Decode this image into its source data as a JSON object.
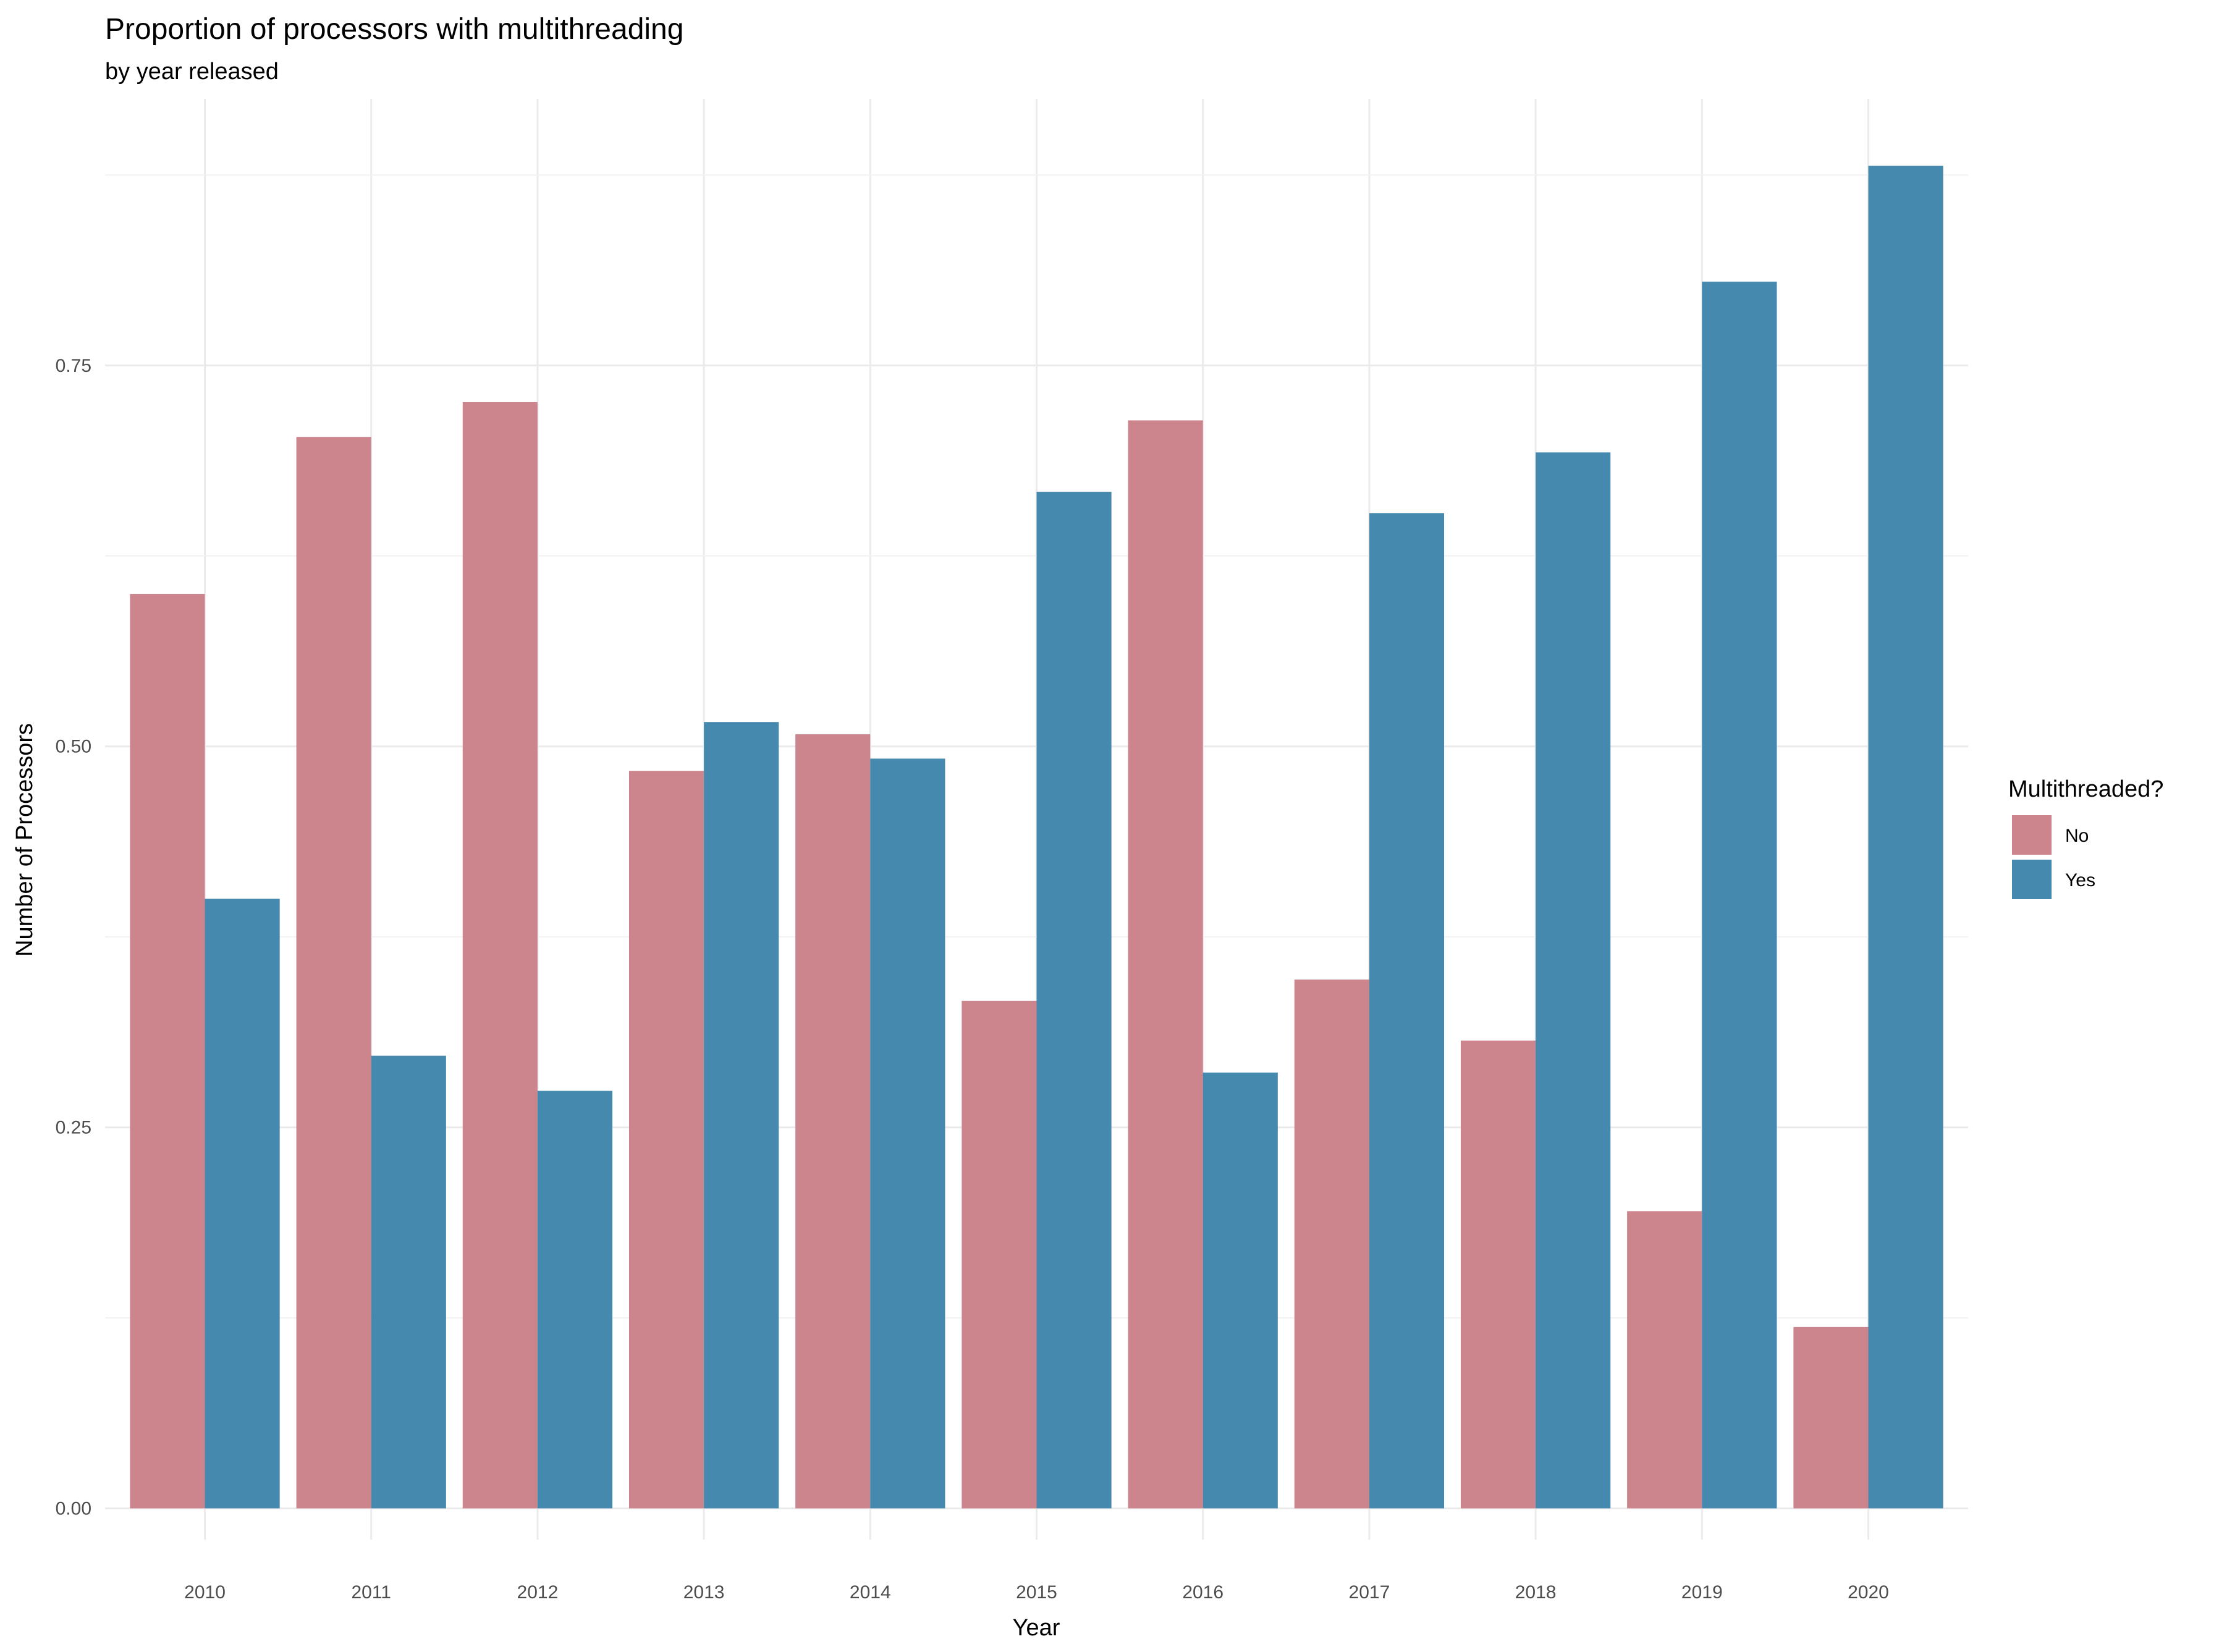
{
  "chart_data": {
    "type": "bar",
    "title": "Proportion of processors with multithreading",
    "subtitle": "by year released",
    "xlabel": "Year",
    "ylabel": "Number of Processors",
    "categories": [
      "2010",
      "2011",
      "2012",
      "2013",
      "2014",
      "2015",
      "2016",
      "2017",
      "2018",
      "2019",
      "2020"
    ],
    "series": [
      {
        "name": "No",
        "color": "#CC858C",
        "values": [
          0.6,
          0.703,
          0.726,
          0.484,
          0.508,
          0.333,
          0.714,
          0.347,
          0.307,
          0.195,
          0.119
        ]
      },
      {
        "name": "Yes",
        "color": "#4589AF",
        "values": [
          0.4,
          0.297,
          0.274,
          0.516,
          0.492,
          0.667,
          0.286,
          0.653,
          0.693,
          0.805,
          0.881
        ]
      }
    ],
    "ylim": [
      -0.0205,
      0.925
    ],
    "yticks": [
      0.0,
      0.25,
      0.5,
      0.75
    ],
    "ytick_labels": [
      "0.00",
      "0.25",
      "0.50",
      "0.75"
    ],
    "grid": true,
    "legend_title": "Multithreaded?",
    "legend_position": "right"
  }
}
